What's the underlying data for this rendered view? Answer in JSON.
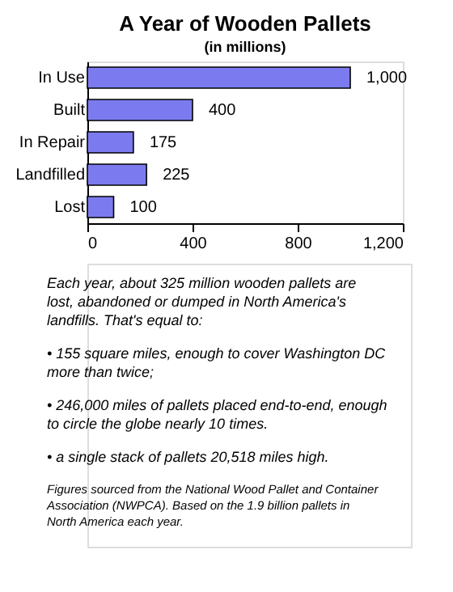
{
  "chart_data": {
    "type": "bar",
    "orientation": "horizontal",
    "title": "A Year of Wooden Pallets",
    "subtitle": "(in millions)",
    "categories": [
      "In Use",
      "Built",
      "In Repair",
      "Landfilled",
      "Lost"
    ],
    "values": [
      1000,
      400,
      175,
      225,
      100
    ],
    "value_labels": [
      "1,000",
      "400",
      "175",
      "225",
      "100"
    ],
    "color": "#7b7bef",
    "xlim": [
      0,
      1200
    ],
    "xticks": [
      0,
      400,
      800,
      {
        "value": 1200,
        "label": "1,200"
      }
    ],
    "grid": false,
    "annotations": [
      "Each year, about 325 million wooden pallets are lost, abandoned or dumped in North America's landfills. That's equal to:",
      "• 155 square miles, enough to cover Washington DC more than twice;",
      "• 246,000 miles of pallets placed end-to-end, enough to circle the globe nearly 10 times.",
      "• a single stack of pallets 20,518 miles high.",
      "Figures sourced from the National Wood Pallet and Container Association (NWPCA). Based on the 1.9 billion pallets in North America each year."
    ]
  }
}
